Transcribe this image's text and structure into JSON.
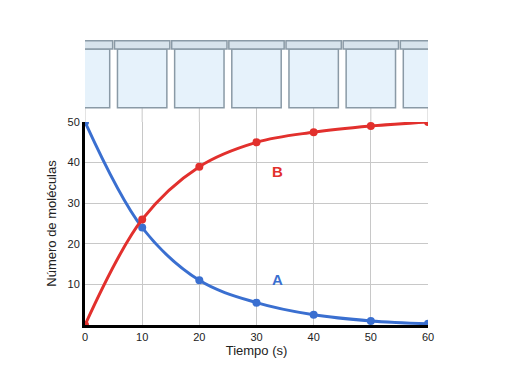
{
  "chart_data": {
    "type": "line",
    "x_label": "Tiempo (s)",
    "y_label": "Número de moléculas",
    "x": [
      0,
      10,
      20,
      30,
      40,
      50,
      60
    ],
    "series": [
      {
        "name": "A",
        "color": "#3a6fd0",
        "values": [
          50,
          24,
          11,
          5.5,
          2.5,
          1,
          0.3
        ]
      },
      {
        "name": "B",
        "color": "#e2302d",
        "values": [
          0,
          26,
          39,
          45,
          47.5,
          49,
          50
        ]
      }
    ],
    "annotations": [
      "A",
      "B"
    ],
    "xlim": [
      0,
      60
    ],
    "xticks": [
      0,
      10,
      20,
      30,
      40,
      50,
      60
    ],
    "ylim": [
      0,
      50
    ],
    "yticks": [
      10,
      20,
      30,
      40,
      50
    ],
    "grid": true,
    "marker": "circle",
    "line_style": "solid"
  }
}
